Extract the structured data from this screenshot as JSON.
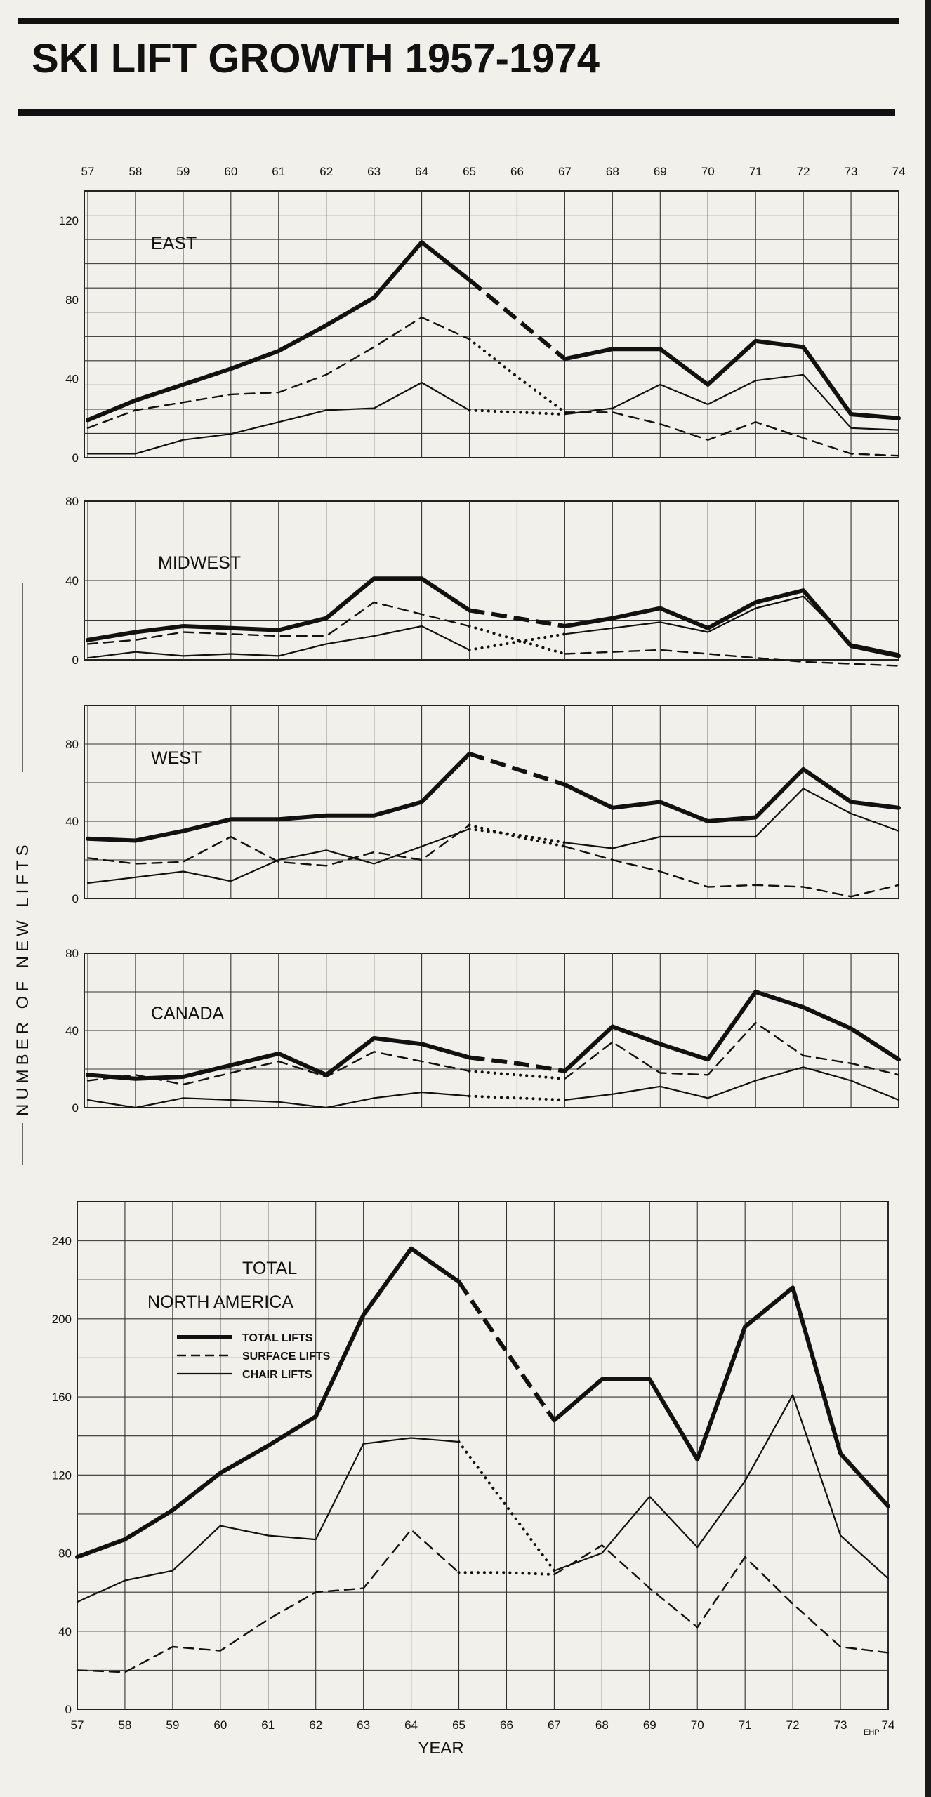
{
  "title": "SKI LIFT GROWTH 1957-1974",
  "y_axis_label": "NUMBER OF NEW LIFTS",
  "x_axis_label": "YEAR",
  "credit": "EHP",
  "years": [
    "57",
    "58",
    "59",
    "60",
    "61",
    "62",
    "63",
    "64",
    "65",
    "66",
    "67",
    "68",
    "69",
    "70",
    "71",
    "72",
    "73",
    "74"
  ],
  "legend": [
    {
      "key": "total",
      "label": "TOTAL LIFTS"
    },
    {
      "key": "surface",
      "label": "SURFACE LIFTS"
    },
    {
      "key": "chair",
      "label": "CHAIR LIFTS"
    }
  ],
  "chart_data": [
    {
      "type": "line",
      "title": "EAST",
      "categories": [
        "57",
        "58",
        "59",
        "60",
        "61",
        "62",
        "63",
        "64",
        "65",
        "66",
        "67",
        "68",
        "69",
        "70",
        "71",
        "72",
        "73",
        "74"
      ],
      "ylim": [
        0,
        135
      ],
      "yticks": [
        0,
        40,
        80,
        120
      ],
      "grid": true,
      "series": [
        {
          "key": "total",
          "values": [
            19,
            29,
            37,
            45,
            54,
            67,
            81,
            109,
            90,
            70,
            50,
            55,
            55,
            37,
            59,
            56,
            22,
            20
          ]
        },
        {
          "key": "surface",
          "values": [
            15,
            24,
            28,
            32,
            33,
            42,
            56,
            71,
            60,
            41,
            23,
            23,
            17,
            9,
            18,
            10,
            2,
            1
          ]
        },
        {
          "key": "chair",
          "values": [
            2,
            2,
            9,
            12,
            18,
            24,
            25,
            38,
            24,
            23,
            22,
            25,
            37,
            27,
            39,
            42,
            15,
            14
          ]
        }
      ]
    },
    {
      "type": "line",
      "title": "MIDWEST",
      "categories": [
        "57",
        "58",
        "59",
        "60",
        "61",
        "62",
        "63",
        "64",
        "65",
        "66",
        "67",
        "68",
        "69",
        "70",
        "71",
        "72",
        "73",
        "74"
      ],
      "ylim": [
        0,
        80
      ],
      "yticks": [
        0,
        40,
        80
      ],
      "grid": true,
      "series": [
        {
          "key": "total",
          "values": [
            10,
            14,
            17,
            16,
            15,
            21,
            41,
            41,
            25,
            21,
            17,
            21,
            26,
            16,
            29,
            35,
            7,
            2
          ]
        },
        {
          "key": "surface",
          "values": [
            8,
            10,
            14,
            13,
            12,
            12,
            29,
            23,
            17,
            10,
            3,
            4,
            5,
            3,
            1,
            -1,
            -2,
            -3
          ]
        },
        {
          "key": "chair",
          "values": [
            1,
            4,
            2,
            3,
            2,
            8,
            12,
            17,
            5,
            9,
            13,
            16,
            19,
            14,
            26,
            32,
            8,
            3
          ]
        }
      ]
    },
    {
      "type": "line",
      "title": "WEST",
      "categories": [
        "57",
        "58",
        "59",
        "60",
        "61",
        "62",
        "63",
        "64",
        "65",
        "66",
        "67",
        "68",
        "69",
        "70",
        "71",
        "72",
        "73",
        "74"
      ],
      "ylim": [
        0,
        100
      ],
      "yticks": [
        0,
        40,
        80
      ],
      "grid": true,
      "series": [
        {
          "key": "total",
          "values": [
            31,
            30,
            35,
            41,
            41,
            43,
            43,
            50,
            75,
            67,
            59,
            47,
            50,
            40,
            42,
            67,
            50,
            47
          ]
        },
        {
          "key": "surface",
          "values": [
            21,
            18,
            19,
            32,
            19,
            17,
            24,
            20,
            38,
            32,
            27,
            20,
            14,
            6,
            7,
            6,
            1,
            7
          ]
        },
        {
          "key": "chair",
          "values": [
            8,
            11,
            14,
            9,
            20,
            25,
            18,
            27,
            36,
            33,
            29,
            26,
            32,
            32,
            32,
            57,
            44,
            35
          ]
        }
      ]
    },
    {
      "type": "line",
      "title": "CANADA",
      "categories": [
        "57",
        "58",
        "59",
        "60",
        "61",
        "62",
        "63",
        "64",
        "65",
        "66",
        "67",
        "68",
        "69",
        "70",
        "71",
        "72",
        "73",
        "74"
      ],
      "ylim": [
        0,
        80
      ],
      "yticks": [
        0,
        40,
        80
      ],
      "grid": true,
      "series": [
        {
          "key": "total",
          "values": [
            17,
            15,
            16,
            22,
            28,
            17,
            36,
            33,
            26,
            23,
            19,
            42,
            33,
            25,
            60,
            52,
            41,
            25
          ]
        },
        {
          "key": "surface",
          "values": [
            14,
            17,
            12,
            18,
            24,
            16,
            29,
            24,
            19,
            17,
            15,
            34,
            18,
            17,
            44,
            27,
            23,
            17
          ]
        },
        {
          "key": "chair",
          "values": [
            4,
            0,
            5,
            4,
            3,
            0,
            5,
            8,
            6,
            5,
            4,
            7,
            11,
            5,
            14,
            21,
            14,
            4
          ]
        }
      ]
    },
    {
      "type": "line",
      "title": "TOTAL",
      "subtitle": "NORTH   AMERICA",
      "categories": [
        "57",
        "58",
        "59",
        "60",
        "61",
        "62",
        "63",
        "64",
        "65",
        "66",
        "67",
        "68",
        "69",
        "70",
        "71",
        "72",
        "73",
        "74"
      ],
      "ylim": [
        0,
        260
      ],
      "yticks": [
        0,
        40,
        80,
        120,
        160,
        200,
        240
      ],
      "grid": true,
      "legend": "upper-left",
      "series": [
        {
          "key": "total",
          "name": "TOTAL LIFTS",
          "values": [
            78,
            87,
            102,
            121,
            135,
            150,
            202,
            236,
            219,
            183,
            148,
            169,
            169,
            128,
            196,
            216,
            131,
            104
          ]
        },
        {
          "key": "surface",
          "name": "SURFACE LIFTS",
          "values": [
            20,
            19,
            32,
            30,
            46,
            60,
            62,
            92,
            70,
            70,
            69,
            84,
            62,
            42,
            78,
            54,
            32,
            29
          ]
        },
        {
          "key": "chair",
          "name": "CHAIR LIFTS",
          "values": [
            55,
            66,
            71,
            94,
            89,
            87,
            136,
            139,
            137,
            104,
            71,
            80,
            109,
            83,
            117,
            161,
            89,
            67
          ]
        }
      ]
    }
  ]
}
